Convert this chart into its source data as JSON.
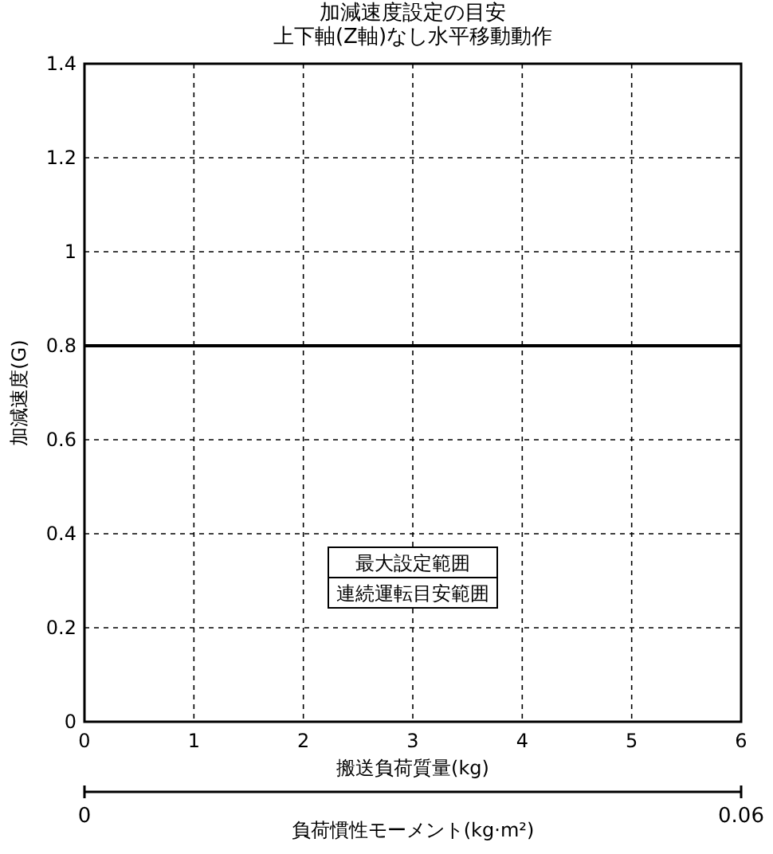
{
  "chart_data": {
    "type": "line",
    "title": "加減速度設定の目安",
    "subtitle": "上下軸(Z軸)なし水平移動動作",
    "xlabel": "搬送負荷質量(kg)",
    "ylabel": "加減速度(G)",
    "x2label": "負荷慣性モーメント(kg·m²)",
    "x": [
      0,
      6
    ],
    "series": [
      {
        "color": "#000000",
        "values": [
          0.8,
          0.8
        ]
      }
    ],
    "xlim": [
      0,
      6
    ],
    "xticks": [
      0,
      1,
      2,
      3,
      4,
      5,
      6
    ],
    "ylim": [
      0,
      1.4
    ],
    "yticks": [
      0,
      0.2,
      0.4,
      0.6,
      0.8,
      1,
      1.2,
      1.4
    ],
    "x2lim": [
      0,
      0.06
    ],
    "x2ticks": [
      0,
      0.06
    ],
    "grid": true,
    "marker": "none",
    "line_style": "solid",
    "annotations": [
      "最大設定範囲",
      "連続運転目安範囲"
    ]
  }
}
